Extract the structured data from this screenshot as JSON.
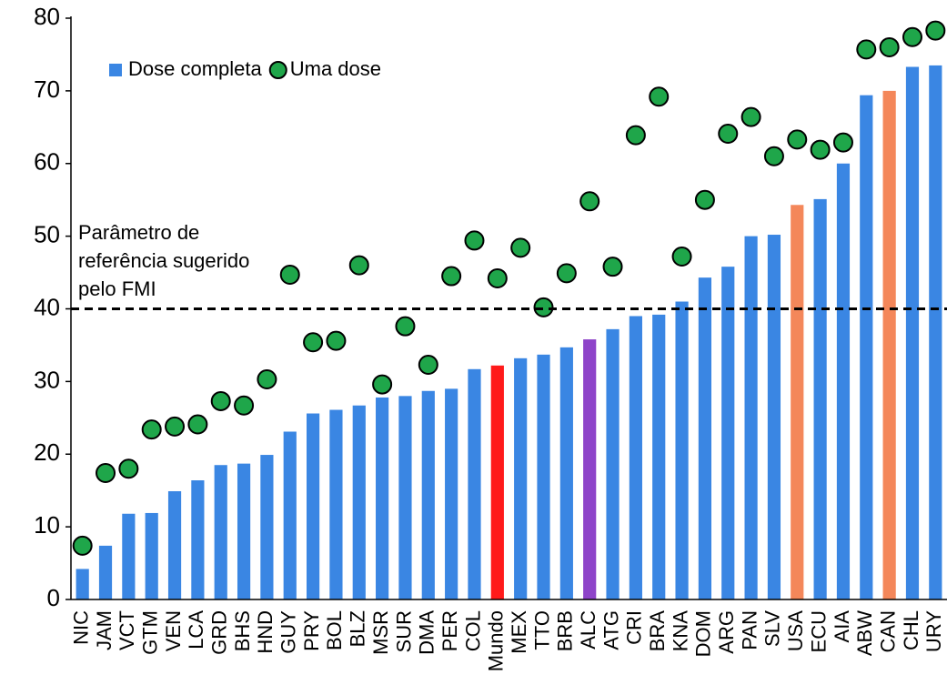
{
  "chart_data": {
    "type": "bar",
    "categories": [
      "NIC",
      "JAM",
      "VCT",
      "GTM",
      "VEN",
      "LCA",
      "GRD",
      "BHS",
      "HND",
      "GUY",
      "PRY",
      "BOL",
      "BLZ",
      "MSR",
      "SUR",
      "DMA",
      "PER",
      "COL",
      "Mundo",
      "MEX",
      "TTO",
      "BRB",
      "ALC",
      "ATG",
      "CRI",
      "BRA",
      "KNA",
      "DOM",
      "ARG",
      "PAN",
      "SLV",
      "USA",
      "ECU",
      "AIA",
      "ABW",
      "CAN",
      "CHL",
      "URY"
    ],
    "series": [
      {
        "name": "Dose completa",
        "type": "bar",
        "color": "#3a86e3",
        "colors": [
          "#3a86e3",
          "#3a86e3",
          "#3a86e3",
          "#3a86e3",
          "#3a86e3",
          "#3a86e3",
          "#3a86e3",
          "#3a86e3",
          "#3a86e3",
          "#3a86e3",
          "#3a86e3",
          "#3a86e3",
          "#3a86e3",
          "#3a86e3",
          "#3a86e3",
          "#3a86e3",
          "#3a86e3",
          "#3a86e3",
          "#ff1a1a",
          "#3a86e3",
          "#3a86e3",
          "#3a86e3",
          "#8e44c9",
          "#3a86e3",
          "#3a86e3",
          "#3a86e3",
          "#3a86e3",
          "#3a86e3",
          "#3a86e3",
          "#3a86e3",
          "#3a86e3",
          "#f4875a",
          "#3a86e3",
          "#3a86e3",
          "#3a86e3",
          "#f4875a",
          "#3a86e3",
          "#3a86e3"
        ],
        "values": [
          4.2,
          7.4,
          11.8,
          11.9,
          14.9,
          16.4,
          18.5,
          18.7,
          19.9,
          23.1,
          25.6,
          26.1,
          26.7,
          27.8,
          28.0,
          28.7,
          29.0,
          31.7,
          32.2,
          33.2,
          33.7,
          34.7,
          35.8,
          37.2,
          39.0,
          39.2,
          41.0,
          44.3,
          45.8,
          50.0,
          50.2,
          54.3,
          55.1,
          60.0,
          69.4,
          70.0,
          73.3,
          73.5
        ]
      },
      {
        "name": "Uma dose",
        "type": "scatter",
        "color": "#1fa64a",
        "values": [
          7.4,
          17.4,
          18.0,
          23.4,
          23.8,
          24.1,
          27.3,
          26.7,
          30.3,
          44.7,
          35.4,
          35.6,
          46.0,
          29.6,
          37.6,
          32.3,
          44.5,
          49.4,
          44.2,
          48.4,
          40.2,
          44.9,
          54.8,
          45.8,
          63.9,
          69.2,
          47.2,
          55.0,
          64.1,
          66.4,
          61.0,
          63.3,
          61.9,
          62.9,
          75.7,
          76.0,
          77.4,
          78.3
        ]
      }
    ],
    "ylim": [
      0,
      80
    ],
    "yticks": [
      0,
      10,
      20,
      30,
      40,
      50,
      60,
      70,
      80
    ],
    "reference_line": 40,
    "annotation": [
      "Parâmetro de",
      "referência sugerido",
      "pelo FMI"
    ],
    "legend": "upper left",
    "grid": false
  }
}
